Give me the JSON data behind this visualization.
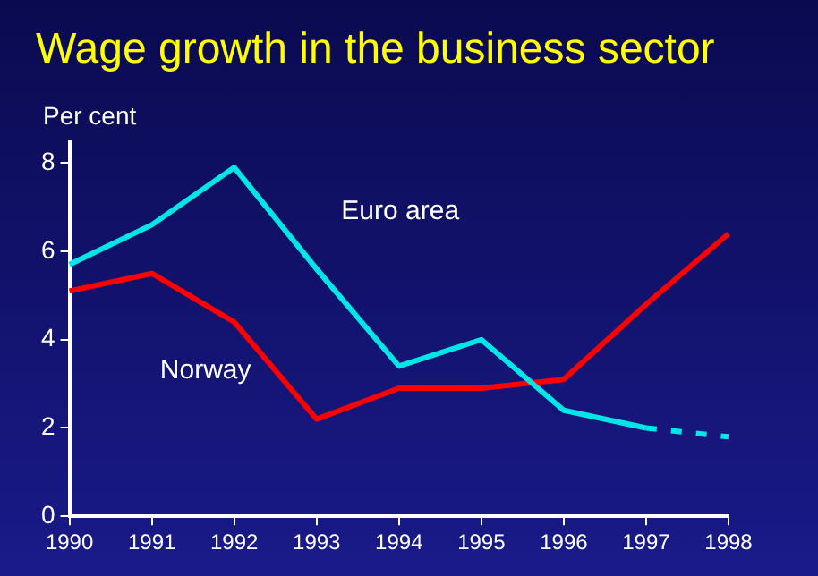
{
  "chart_data": {
    "type": "line",
    "title": "Wage growth in the business sector",
    "ylabel": "Per cent",
    "categories": [
      "1990",
      "1991",
      "1992",
      "1993",
      "1994",
      "1995",
      "1996",
      "1997",
      "1998"
    ],
    "series": [
      {
        "name": "Euro area",
        "color": "#00e5e5",
        "values": [
          5.7,
          6.6,
          7.9,
          5.6,
          3.4,
          4.0,
          2.4,
          2.0,
          null
        ]
      },
      {
        "color": "#00e5e5",
        "line_style": "dashed",
        "values": [
          null,
          null,
          null,
          null,
          null,
          null,
          null,
          2.0,
          1.8
        ]
      },
      {
        "name": "Norway",
        "color": "#ff0000",
        "values": [
          5.1,
          5.5,
          4.4,
          2.2,
          2.9,
          2.9,
          3.1,
          4.8,
          6.4
        ]
      }
    ],
    "ylim": [
      0,
      8.5
    ],
    "yticks": [
      0,
      2,
      4,
      6,
      8
    ],
    "grid": false,
    "legend": false,
    "marker": "none"
  }
}
